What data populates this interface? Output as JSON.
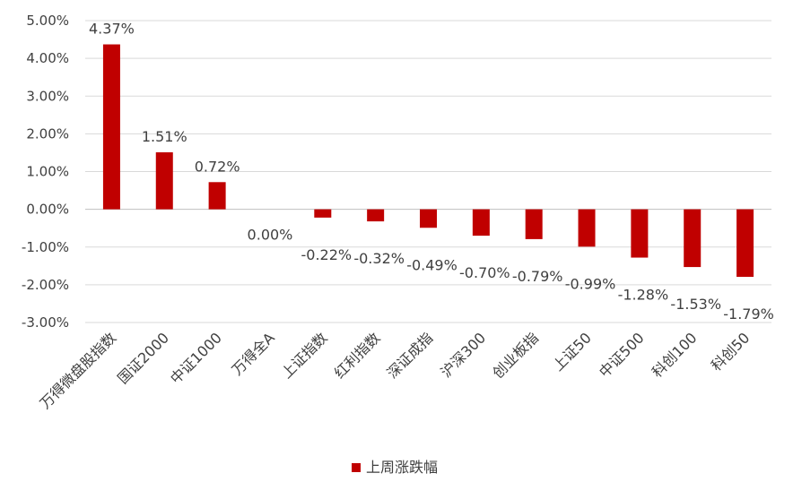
{
  "chart_data": {
    "type": "bar",
    "title": "",
    "xlabel": "",
    "ylabel": "",
    "ylim": [
      -3.0,
      5.0
    ],
    "yticks": [
      "5.00%",
      "4.00%",
      "3.00%",
      "2.00%",
      "1.00%",
      "0.00%",
      "-1.00%",
      "-2.00%",
      "-3.00%"
    ],
    "ytick_values": [
      5,
      4,
      3,
      2,
      1,
      0,
      -1,
      -2,
      -3
    ],
    "grid": true,
    "legend_position": "bottom",
    "bar_color": "#C00000",
    "categories": [
      "万得微盘股指数",
      "国证2000",
      "中证1000",
      "万得全A",
      "上证指数",
      "红利指数",
      "深证成指",
      "沪深300",
      "创业板指",
      "上证50",
      "中证500",
      "科创100",
      "科创50"
    ],
    "series": [
      {
        "name": "上周涨跌幅",
        "values": [
          4.37,
          1.51,
          0.72,
          0.0,
          -0.22,
          -0.32,
          -0.49,
          -0.7,
          -0.79,
          -0.99,
          -1.28,
          -1.53,
          -1.79
        ],
        "labels": [
          "4.37%",
          "1.51%",
          "0.72%",
          "0.00%",
          "-0.22%",
          "-0.32%",
          "-0.49%",
          "-0.70%",
          "-0.79%",
          "-0.99%",
          "-1.28%",
          "-1.53%",
          "-1.79%"
        ]
      }
    ]
  }
}
